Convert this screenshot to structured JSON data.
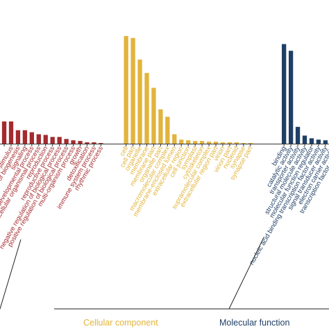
{
  "chart_data": {
    "type": "bar",
    "groups": [
      {
        "name": "",
        "color": "#a52a2e",
        "categories": [
          "",
          "",
          "",
          "stimulus",
          "of biogenesis",
          "signaling",
          "developmental process",
          "multicellular organismal process",
          "reproduction",
          "reproductive process",
          "negative regulation of biological process",
          "positive regulation of biological process",
          "multi-organism process",
          "growth",
          "detoxification",
          "immune system process",
          "rhythmic process"
        ],
        "values": [
          38,
          36,
          33,
          33,
          20,
          20,
          17,
          14,
          13,
          10,
          10,
          7,
          5,
          4,
          2,
          2,
          1
        ]
      },
      {
        "name": "Cellular component",
        "color": "#e2b43c",
        "categories": [
          "cell",
          "cell part",
          "organelle",
          "membrane",
          "membrane part",
          "organelle part",
          "macromolecular complex",
          "membrane-enclosed lumen",
          "extracellular region",
          "cell junction",
          "symplast",
          "cytoskeleton",
          "supramolecular complex",
          "extracellular region part",
          "virion",
          "virion part",
          "nucleoid",
          "synapse",
          "synapse part"
        ],
        "values": [
          160,
          157,
          125,
          105,
          83,
          51,
          40,
          14,
          6,
          5,
          4,
          4,
          3,
          3,
          2,
          2,
          2,
          1,
          1
        ]
      },
      {
        "name": "Molecular function",
        "color": "#1f3f66",
        "categories": [
          "binding",
          "catalytic activity",
          "transporter activity",
          "structural molecule activity",
          "molecular function regulator",
          "nucleic acid binding transcription factor activity",
          "signal transducer activity",
          "electron carrier activity",
          "transcription factor activity"
        ],
        "values": [
          148,
          138,
          25,
          12,
          8,
          6,
          5,
          4,
          3
        ]
      }
    ],
    "ylim": [
      0,
      165
    ]
  }
}
